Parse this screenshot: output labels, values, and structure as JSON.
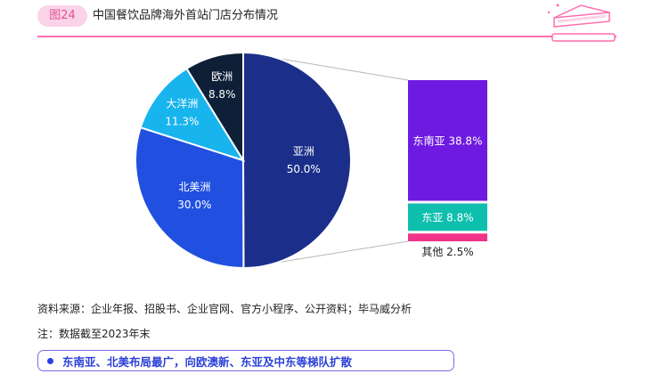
{
  "header": {
    "figure_no": "图24",
    "title": "中国餐饮品牌海外首站门店分布情况"
  },
  "chart_data": {
    "type": "pie",
    "main": {
      "slices": [
        {
          "label": "亚洲",
          "value": 50.0,
          "value_text": "50.0%",
          "color": "#1b2f8a"
        },
        {
          "label": "北美洲",
          "value": 30.0,
          "value_text": "30.0%",
          "color": "#2150e0"
        },
        {
          "label": "大洋洲",
          "value": 11.3,
          "value_text": "11.3%",
          "color": "#18b4ee"
        },
        {
          "label": "欧洲",
          "value": 8.8,
          "value_text": "8.8%",
          "color": "#0e1f38"
        }
      ]
    },
    "breakdown": {
      "of": "亚洲",
      "segments": [
        {
          "label": "东南亚 38.8%",
          "value": 38.8,
          "color": "#6e1ae0"
        },
        {
          "label": "东亚 8.8%",
          "value": 8.8,
          "color": "#0fbfae"
        },
        {
          "label": "其他 2.5%",
          "value": 2.5,
          "color": "#f0348a"
        }
      ]
    }
  },
  "footer": {
    "source": "资料来源：企业年报、招股书、企业官网、官方小程序、公开资料；毕马威分析",
    "note": "注：数据截至2023年末",
    "conclusion": "东南亚、北美布局最广，向欧澳新、东亚及中东等梯队扩散"
  },
  "colors": {
    "accent_pink": "#ff6fae",
    "badge_bg": "#fbd3e9",
    "conclusion_text": "#2a3fd8",
    "conclusion_border": "#7b6fe6"
  }
}
